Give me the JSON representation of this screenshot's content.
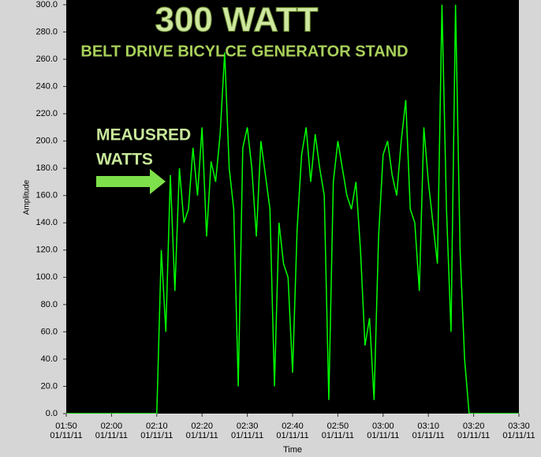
{
  "chart_data": {
    "type": "line",
    "title": "300 WATT",
    "subtitle": "BELT DRIVE BICYLCE GENERATOR STAND",
    "annotations": [
      "MEAUSRED",
      "WATTS"
    ],
    "x_label": "Time",
    "y_label": "Amplitude",
    "x": [
      "01/11/11 01:50",
      "01/11/11 02:10",
      "01/11/11 02:11",
      "01/11/11 02:12",
      "01/11/11 02:13",
      "01/11/11 02:14",
      "01/11/11 02:15",
      "01/11/11 02:16",
      "01/11/11 02:17",
      "01/11/11 02:18",
      "01/11/11 02:19",
      "01/11/11 02:20",
      "01/11/11 02:21",
      "01/11/11 02:22",
      "01/11/11 02:23",
      "01/11/11 02:24",
      "01/11/11 02:25",
      "01/11/11 02:26",
      "01/11/11 02:27",
      "01/11/11 02:28",
      "01/11/11 02:29",
      "01/11/11 02:30",
      "01/11/11 02:31",
      "01/11/11 02:32",
      "01/11/11 02:33",
      "01/11/11 02:34",
      "01/11/11 02:35",
      "01/11/11 02:36",
      "01/11/11 02:37",
      "01/11/11 02:38",
      "01/11/11 02:39",
      "01/11/11 02:40",
      "01/11/11 02:41",
      "01/11/11 02:42",
      "01/11/11 02:43",
      "01/11/11 02:44",
      "01/11/11 02:45",
      "01/11/11 02:46",
      "01/11/11 02:47",
      "01/11/11 02:48",
      "01/11/11 02:49",
      "01/11/11 02:50",
      "01/11/11 02:51",
      "01/11/11 02:52",
      "01/11/11 02:53",
      "01/11/11 02:54",
      "01/11/11 02:55",
      "01/11/11 02:56",
      "01/11/11 02:57",
      "01/11/11 02:58",
      "01/11/11 02:59",
      "01/11/11 03:00",
      "01/11/11 03:01",
      "01/11/11 03:02",
      "01/11/11 03:03",
      "01/11/11 03:04",
      "01/11/11 03:05",
      "01/11/11 03:06",
      "01/11/11 03:07",
      "01/11/11 03:08",
      "01/11/11 03:09",
      "01/11/11 03:10",
      "01/11/11 03:11",
      "01/11/11 03:12",
      "01/11/11 03:13",
      "01/11/11 03:14",
      "01/11/11 03:15",
      "01/11/11 03:16",
      "01/11/11 03:17",
      "01/11/11 03:18",
      "01/11/11 03:19",
      "01/11/11 03:30"
    ],
    "series": [
      {
        "color": "#00ff00",
        "values": [
          0,
          0,
          120,
          60,
          175,
          90,
          180,
          140,
          150,
          195,
          160,
          210,
          130,
          185,
          170,
          205,
          265,
          180,
          150,
          20,
          195,
          210,
          180,
          130,
          200,
          175,
          150,
          20,
          140,
          110,
          100,
          30,
          135,
          190,
          210,
          170,
          205,
          180,
          160,
          10,
          170,
          200,
          180,
          160,
          150,
          170,
          120,
          50,
          70,
          10,
          130,
          190,
          200,
          175,
          160,
          200,
          230,
          150,
          140,
          90,
          210,
          170,
          140,
          110,
          300,
          150,
          60,
          300,
          120,
          40,
          0,
          0
        ]
      }
    ],
    "xlim": [
      "01/11/11 01:50",
      "01/11/11 03:30"
    ],
    "xticks": [
      {
        "value": "01/11/11 01:50",
        "label": "01:50\n01/11/11"
      },
      {
        "value": "01/11/11 02:00",
        "label": "02:00\n01/11/11"
      },
      {
        "value": "01/11/11 02:10",
        "label": "02:10\n01/11/11"
      },
      {
        "value": "01/11/11 02:20",
        "label": "02:20\n01/11/11"
      },
      {
        "value": "01/11/11 02:30",
        "label": "02:30\n01/11/11"
      },
      {
        "value": "01/11/11 02:40",
        "label": "02:40\n01/11/11"
      },
      {
        "value": "01/11/11 02:50",
        "label": "02:50\n01/11/11"
      },
      {
        "value": "01/11/11 03:00",
        "label": "03:00\n01/11/11"
      },
      {
        "value": "01/11/11 03:10",
        "label": "03:10\n01/11/11"
      },
      {
        "value": "01/11/11 03:20",
        "label": "03:20\n01/11/11"
      },
      {
        "value": "01/11/11 03:30",
        "label": "03:30\n01/11/11"
      }
    ],
    "ylim": [
      0,
      300
    ],
    "yticks": [
      {
        "value": 0,
        "label": "0.0"
      },
      {
        "value": 20,
        "label": "20.0"
      },
      {
        "value": 40,
        "label": "40.0"
      },
      {
        "value": 60,
        "label": "60.0"
      },
      {
        "value": 80,
        "label": "80.0"
      },
      {
        "value": 100,
        "label": "100.0"
      },
      {
        "value": 120,
        "label": "120.0"
      },
      {
        "value": 140,
        "label": "140.0"
      },
      {
        "value": 160,
        "label": "160.0"
      },
      {
        "value": 180,
        "label": "180.0"
      },
      {
        "value": 200,
        "label": "200.0"
      },
      {
        "value": 220,
        "label": "220.0"
      },
      {
        "value": 240,
        "label": "240.0"
      },
      {
        "value": 260,
        "label": "260.0"
      },
      {
        "value": 280,
        "label": "280.0"
      },
      {
        "value": 300,
        "label": "300.0"
      }
    ],
    "grid": false
  }
}
